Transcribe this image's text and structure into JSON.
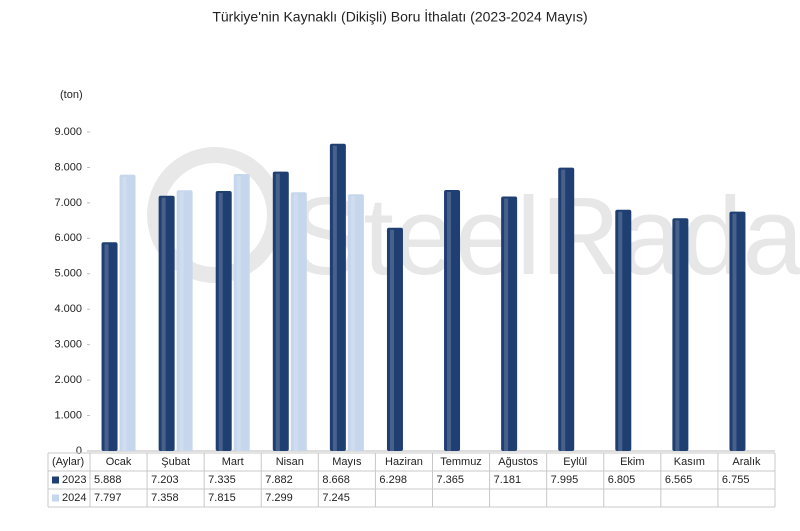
{
  "chart_data": {
    "type": "bar",
    "title": "Türkiye'nin Kaynaklı (Dikişli) Boru İthalatı (2023-2024 Mayıs)",
    "y_label": "(ton)",
    "x_label": "(Aylar)",
    "watermark": "SteelRadar",
    "categories": [
      "Ocak",
      "Şubat",
      "Mart",
      "Nisan",
      "Mayıs",
      "Haziran",
      "Temmuz",
      "Ağustos",
      "Eylül",
      "Ekim",
      "Kasım",
      "Aralık"
    ],
    "series": [
      {
        "name": "2023",
        "color": "#1f3f72",
        "values": [
          5888,
          7203,
          7335,
          7882,
          8668,
          6298,
          7365,
          7181,
          7995,
          6805,
          6565,
          6755
        ],
        "value_labels": [
          "5.888",
          "7.203",
          "7.335",
          "7.882",
          "8.668",
          "6.298",
          "7.365",
          "7.181",
          "7.995",
          "6.805",
          "6.565",
          "6.755"
        ]
      },
      {
        "name": "2024",
        "color": "#c6d6ec",
        "values": [
          7797,
          7358,
          7815,
          7299,
          7245,
          null,
          null,
          null,
          null,
          null,
          null,
          null
        ],
        "value_labels": [
          "7.797",
          "7.358",
          "7.815",
          "7.299",
          "7.245",
          null,
          null,
          null,
          null,
          null,
          null,
          null
        ]
      }
    ],
    "ylim": [
      0,
      9000
    ],
    "yticks": [
      0,
      {
        "value": 1000,
        "label": "1.000"
      },
      {
        "value": 2000,
        "label": "2.000"
      },
      {
        "value": 3000,
        "label": "3.000"
      },
      {
        "value": 4000,
        "label": "4.000"
      },
      {
        "value": 5000,
        "label": "5.000"
      },
      {
        "value": 6000,
        "label": "6.000"
      },
      {
        "value": 7000,
        "label": "7.000"
      },
      {
        "value": 8000,
        "label": "8.000"
      },
      {
        "value": 9000,
        "label": "9.000"
      }
    ],
    "grid": false
  }
}
